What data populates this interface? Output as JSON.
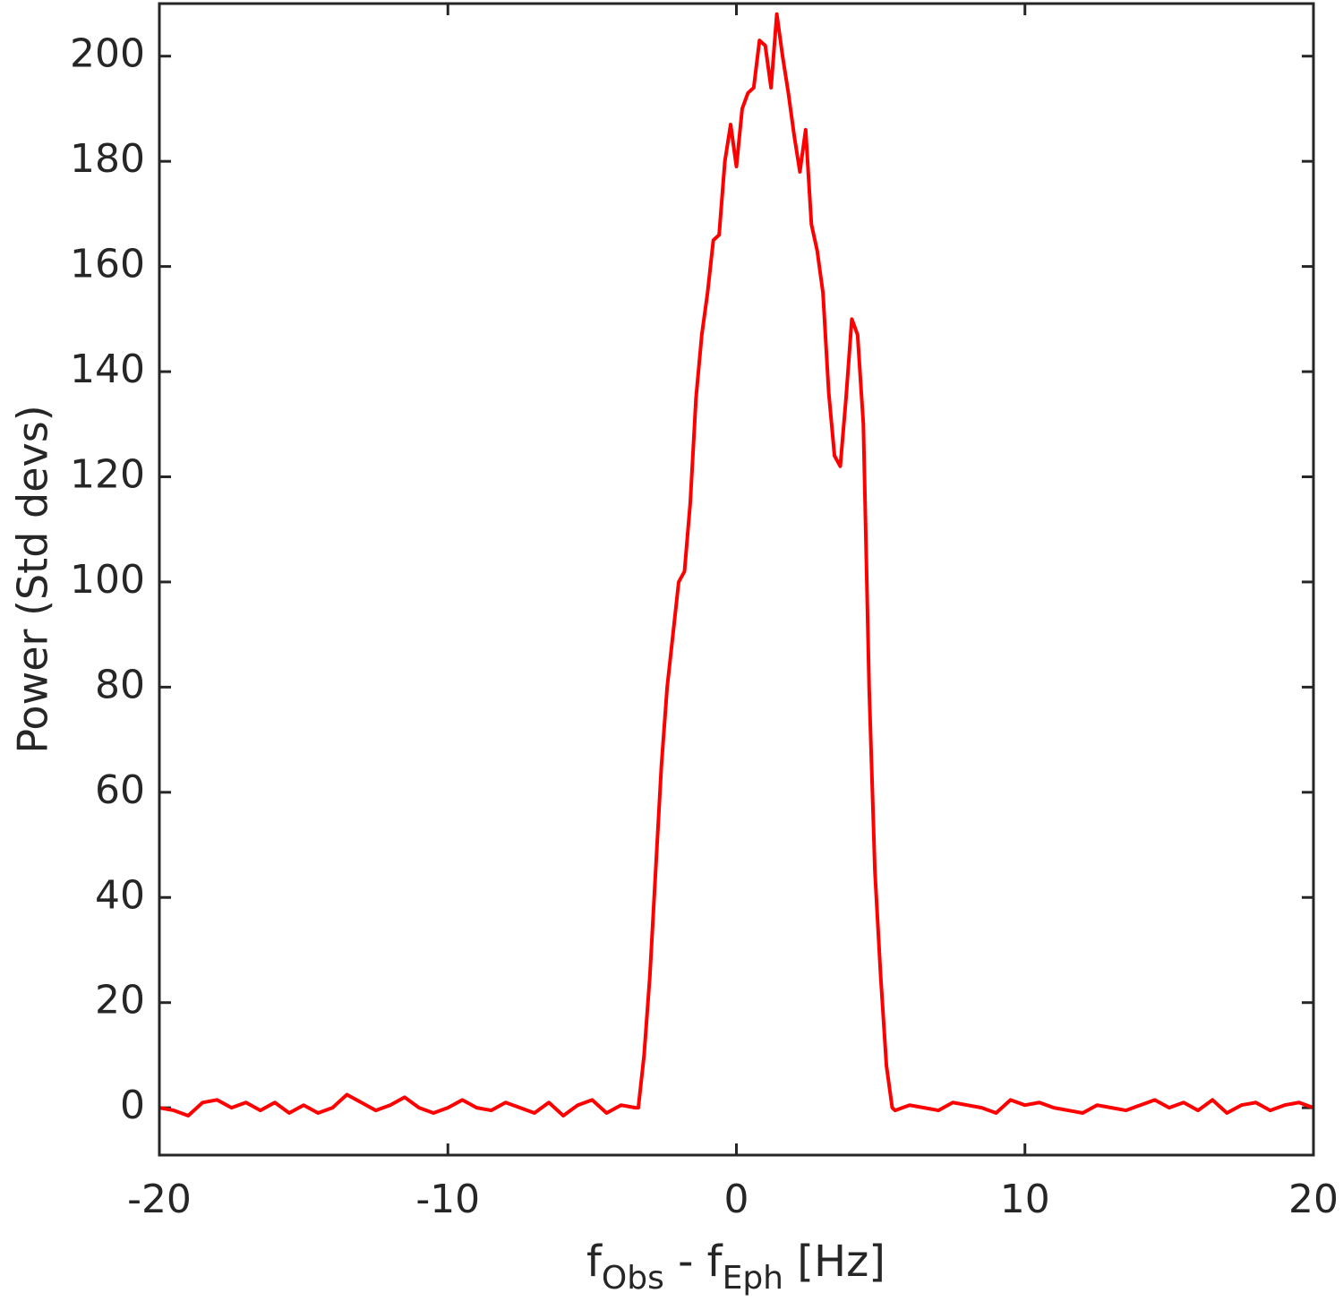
{
  "chart_data": {
    "type": "line",
    "ylabel": "Power (Std devs)",
    "xlabel": [
      {
        "text": "f"
      },
      {
        "text": "Obs",
        "subscript": true
      },
      {
        "text": " - f"
      },
      {
        "text": "Eph",
        "subscript": true
      },
      {
        "text": " [Hz]"
      }
    ],
    "xlim": [
      -20,
      20
    ],
    "ylim": [
      -9,
      210
    ],
    "xticks": [
      -20,
      -10,
      0,
      10,
      20
    ],
    "yticks": [
      0,
      20,
      40,
      60,
      80,
      100,
      120,
      140,
      160,
      180,
      200
    ],
    "grid": false,
    "x": [
      -20,
      -19.5,
      -19,
      -18.5,
      -18,
      -17.5,
      -17,
      -16.5,
      -16,
      -15.5,
      -15,
      -14.5,
      -14,
      -13.5,
      -13,
      -12.5,
      -12,
      -11.5,
      -11,
      -10.5,
      -10,
      -9.5,
      -9,
      -8.5,
      -8,
      -7.5,
      -7,
      -6.5,
      -6,
      -5.5,
      -5,
      -4.5,
      -4,
      -3.5,
      -3.4,
      -3.2,
      -3.0,
      -2.8,
      -2.6,
      -2.4,
      -2.2,
      -2.0,
      -1.8,
      -1.6,
      -1.4,
      -1.2,
      -1.0,
      -0.8,
      -0.6,
      -0.4,
      -0.2,
      0,
      0.2,
      0.4,
      0.6,
      0.8,
      1.0,
      1.2,
      1.4,
      1.6,
      1.8,
      2.0,
      2.2,
      2.4,
      2.6,
      2.8,
      3.0,
      3.2,
      3.4,
      3.6,
      3.8,
      4.0,
      4.2,
      4.4,
      4.6,
      4.8,
      5.0,
      5.2,
      5.4,
      5.5,
      6,
      6.5,
      7,
      7.5,
      8,
      8.5,
      9,
      9.5,
      10,
      10.5,
      11,
      11.5,
      12,
      12.5,
      13,
      13.5,
      14,
      14.5,
      15,
      15.5,
      16,
      16.5,
      17,
      17.5,
      18,
      18.5,
      19,
      19.5,
      20
    ],
    "series": [
      {
        "name": "Power",
        "color": "#ff0000",
        "values": [
          0,
          -0.5,
          -1.5,
          1,
          1.5,
          0,
          1,
          -0.5,
          1,
          -1,
          0.5,
          -1,
          0,
          2.5,
          1,
          -0.5,
          0.5,
          2,
          0,
          -1,
          0,
          1.5,
          0,
          -0.5,
          1,
          0,
          -1,
          1,
          -1.5,
          0.5,
          1.5,
          -1,
          0.5,
          0,
          0,
          10,
          25,
          45,
          65,
          80,
          90,
          100,
          102,
          115,
          135,
          147,
          155,
          165,
          166,
          180,
          187,
          179,
          190,
          193,
          194,
          203,
          202,
          194,
          208,
          200,
          193,
          185,
          178,
          186,
          168,
          163,
          155,
          136,
          124,
          122,
          135,
          150,
          147,
          130,
          80,
          45,
          25,
          8,
          0,
          -0.5,
          0.5,
          0,
          -0.5,
          1,
          0.5,
          0,
          -1,
          1.5,
          0.5,
          1,
          0,
          -0.5,
          -1,
          0.5,
          0,
          -0.5,
          0.5,
          1.5,
          0,
          1,
          -0.5,
          1.5,
          -1,
          0.5,
          1,
          -0.5,
          0.5,
          1,
          0
        ]
      }
    ]
  }
}
